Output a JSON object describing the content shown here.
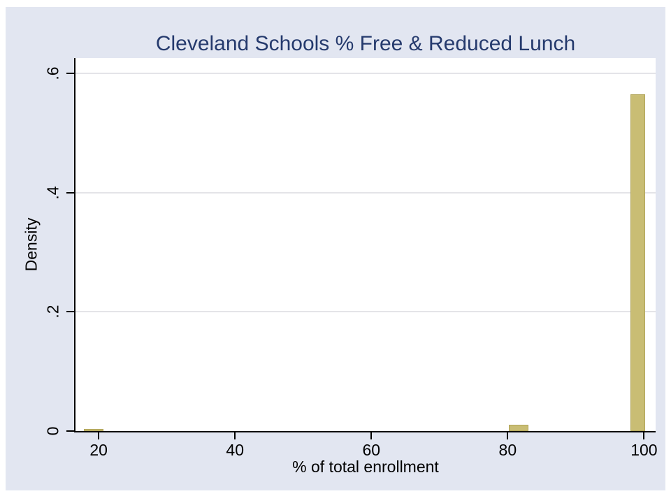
{
  "chart_data": {
    "type": "bar",
    "title": "Cleveland Schools % Free & Reduced Lunch",
    "xlabel": "% of total enrollment",
    "ylabel": "Density",
    "xlim": [
      16.6,
      101.7
    ],
    "ylim": [
      0,
      0.626
    ],
    "xticks": [
      20,
      40,
      60,
      80,
      100
    ],
    "yticks": [
      {
        "value": 0,
        "label": "0"
      },
      {
        "value": 0.2,
        "label": ".2"
      },
      {
        "value": 0.4,
        "label": ".4"
      },
      {
        "value": 0.6,
        "label": ".6"
      }
    ],
    "grid": "horizontal",
    "legend": "none",
    "bars": [
      {
        "x_start": 17.8,
        "x_end": 20.7,
        "density": 0.003
      },
      {
        "x_start": 80.2,
        "x_end": 83.0,
        "density": 0.01
      },
      {
        "x_start": 98.0,
        "x_end": 100.2,
        "density": 0.565
      }
    ],
    "colors": {
      "bar_fill": "#c9bd74",
      "bar_border": "#b0a458",
      "background": "#e2e6f1",
      "plot_background": "#ffffff",
      "gridline": "#e4e4e8",
      "axis": "#000000",
      "title_text": "#253a6d"
    }
  }
}
